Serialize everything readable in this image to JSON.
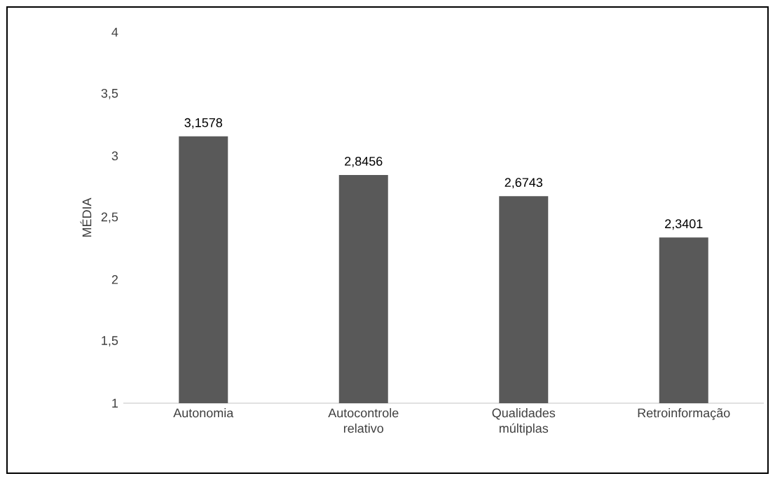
{
  "chart_data": {
    "type": "bar",
    "ylabel": "MÉDIA",
    "categories": [
      "Autonomia",
      "Autocontrole relativo",
      "Qualidades múltiplas",
      "Retroinformação"
    ],
    "values": [
      3.1578,
      2.8456,
      2.6743,
      2.3401
    ],
    "value_labels": [
      "3,1578",
      "2,8456",
      "2,6743",
      "2,3401"
    ],
    "color": "#595959",
    "ylim": [
      1,
      4
    ],
    "yticks": [
      1,
      {
        "value": 1.5,
        "label": "1,5"
      },
      2,
      {
        "value": 2.5,
        "label": "2,5"
      },
      3,
      {
        "value": 3.5,
        "label": "3,5"
      },
      4
    ],
    "grid": false
  }
}
